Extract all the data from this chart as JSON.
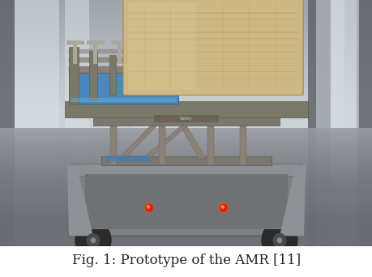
{
  "caption": "Fig. 1: Prototype of the AMR [11]",
  "caption_fontsize": 12,
  "caption_color": "#222222",
  "background_color": "#ffffff",
  "fig_width": 4.6,
  "fig_height": 3.42,
  "dpi": 100,
  "img_region": [
    0.0,
    0.12,
    1.0,
    0.88
  ],
  "bg_sky": "#c8cdd1",
  "bg_floor": "#aaaaaa",
  "bg_wall_light": "#d2d5d8",
  "bg_col_dark": "#8a8e92",
  "bg_col_light": "#e0e3e6",
  "amr_body_color": "#7d8285",
  "amr_body_dark": "#5a5d60",
  "amr_body_light": "#9a9da0",
  "bed_wood_light": "#d4bc8e",
  "bed_wood_mid": "#c4aa7a",
  "bed_wood_dark": "#b09060",
  "bed_frame_color": "#8a8070",
  "bed_rail_blue": "#4a7caa",
  "bed_rail_teal": "#3a6a90",
  "wheel_color": "#2a2a2a",
  "red_light_color": "#dd2200",
  "floor_color": "#9a9ea2",
  "floor_mid": "#b0b4b8"
}
